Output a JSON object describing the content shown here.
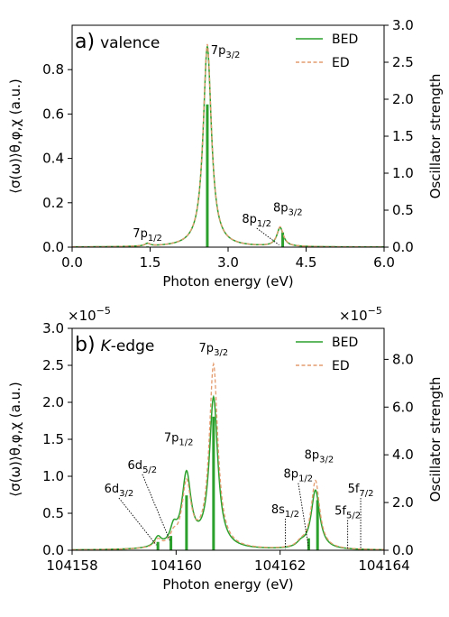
{
  "colors": {
    "bed": "#2ca02c",
    "ed": "#e39b6e",
    "stick": "#2ca02c",
    "axis": "#000000"
  },
  "chart_data": [
    {
      "type": "line",
      "panel_label": "a)",
      "panel_title": "valence",
      "xlabel": "Photon energy (eV)",
      "ylabel": "⟨σ(ω)⟩θ,φ,χ (a.u.)",
      "ylabel_right": "Oscillator strength",
      "xlim": [
        0.0,
        6.0
      ],
      "ylim": [
        0.0,
        1.0
      ],
      "ylim_right": [
        0.0,
        3.0
      ],
      "xticks": [
        0.0,
        1.5,
        3.0,
        4.5,
        6.0
      ],
      "xtick_labels": [
        "0.0",
        "1.5",
        "3.0",
        "4.5",
        "6.0"
      ],
      "yticks": [
        0.0,
        0.2,
        0.4,
        0.6,
        0.8
      ],
      "ytick_labels": [
        "0.0",
        "0.2",
        "0.4",
        "0.6",
        "0.8"
      ],
      "yticks_right": [
        0.0,
        0.5,
        1.0,
        1.5,
        2.0,
        2.5,
        3.0
      ],
      "ytick_labels_right": [
        "0.0",
        "0.5",
        "1.0",
        "1.5",
        "2.0",
        "2.5",
        "3.0"
      ],
      "legend": {
        "placement": "top-right",
        "entries": [
          "BED",
          "ED"
        ]
      },
      "series": [
        {
          "name": "BED",
          "style": "solid",
          "peaks": [
            {
              "x0": 1.45,
              "amp": 0.012,
              "gamma": 0.12
            },
            {
              "x0": 2.6,
              "amp": 0.905,
              "gamma": 0.19
            },
            {
              "x0": 4.0,
              "amp": 0.085,
              "gamma": 0.15
            }
          ]
        },
        {
          "name": "ED",
          "style": "dashed",
          "peaks": [
            {
              "x0": 1.45,
              "amp": 0.012,
              "gamma": 0.12
            },
            {
              "x0": 2.6,
              "amp": 0.915,
              "gamma": 0.19
            },
            {
              "x0": 4.0,
              "amp": 0.088,
              "gamma": 0.15
            }
          ]
        }
      ],
      "sticks": [
        {
          "x": 1.45,
          "f": 0.01
        },
        {
          "x": 2.6,
          "f": 1.93
        },
        {
          "x": 4.05,
          "f": 0.2
        }
      ],
      "annotations": [
        {
          "base": "7p",
          "sub": "1/2",
          "x": 1.45,
          "y": 0.045,
          "anchor": "middle"
        },
        {
          "base": "7p",
          "sub": "3/2",
          "x": 2.95,
          "y": 0.87,
          "anchor": "middle"
        },
        {
          "base": "8p",
          "sub": "1/2",
          "x": 3.55,
          "y": 0.11,
          "anchor": "middle",
          "leader_to": [
            3.98,
            0.01
          ]
        },
        {
          "base": "8p",
          "sub": "3/2",
          "x": 4.15,
          "y": 0.16,
          "anchor": "middle"
        }
      ]
    },
    {
      "type": "line",
      "panel_label": "b)",
      "panel_title_italic": "K",
      "panel_title": "-edge",
      "xlabel": "Photon energy (eV)",
      "ylabel": "⟨σ(ω)⟩θ,φ,χ (a.u.)",
      "ylabel_right": "Oscillator strength",
      "scale_label": "×10",
      "scale_exp": "−5",
      "xlim": [
        104158,
        104164
      ],
      "ylim": [
        0.0,
        3.0
      ],
      "ylim_right": [
        0.0,
        9.3
      ],
      "xticks": [
        104158,
        104160,
        104162,
        104164
      ],
      "xtick_labels": [
        "104158",
        "104160",
        "104162",
        "104164"
      ],
      "yticks": [
        0.0,
        0.5,
        1.0,
        1.5,
        2.0,
        2.5,
        3.0
      ],
      "ytick_labels": [
        "0.0",
        "0.5",
        "1.0",
        "1.5",
        "2.0",
        "2.5",
        "3.0"
      ],
      "yticks_right": [
        0.0,
        2.0,
        4.0,
        6.0,
        8.0
      ],
      "ytick_labels_right": [
        "0.0",
        "2.0",
        "4.0",
        "6.0",
        "8.0"
      ],
      "legend": {
        "placement": "top-right",
        "entries": [
          "BED",
          "ED"
        ]
      },
      "series": [
        {
          "name": "BED",
          "style": "solid",
          "peaks": [
            {
              "x0": 104159.65,
              "amp": 0.13,
              "gamma": 0.16
            },
            {
              "x0": 104159.95,
              "amp": 0.22,
              "gamma": 0.16
            },
            {
              "x0": 104160.2,
              "amp": 0.98,
              "gamma": 0.21
            },
            {
              "x0": 104160.72,
              "amp": 2.03,
              "gamma": 0.2
            },
            {
              "x0": 104162.4,
              "amp": 0.06,
              "gamma": 0.2
            },
            {
              "x0": 104162.68,
              "amp": 0.8,
              "gamma": 0.2
            }
          ]
        },
        {
          "name": "ED",
          "style": "dashed",
          "peaks": [
            {
              "x0": 104159.65,
              "amp": 0.1,
              "gamma": 0.16
            },
            {
              "x0": 104159.95,
              "amp": 0.13,
              "gamma": 0.16
            },
            {
              "x0": 104160.2,
              "amp": 0.86,
              "gamma": 0.21
            },
            {
              "x0": 104160.72,
              "amp": 2.48,
              "gamma": 0.2
            },
            {
              "x0": 104162.4,
              "amp": 0.06,
              "gamma": 0.2
            },
            {
              "x0": 104162.68,
              "amp": 0.93,
              "gamma": 0.2
            }
          ]
        }
      ],
      "sticks": [
        {
          "x": 104159.65,
          "f": 0.35
        },
        {
          "x": 104159.9,
          "f": 0.6
        },
        {
          "x": 104160.2,
          "f": 2.3
        },
        {
          "x": 104160.72,
          "f": 5.6
        },
        {
          "x": 104162.55,
          "f": 0.5
        },
        {
          "x": 104162.72,
          "f": 2.1
        }
      ],
      "annotations": [
        {
          "base": "6d",
          "sub": "3/2",
          "x": 104158.9,
          "y": 0.78,
          "anchor": "middle",
          "leader_to": [
            104159.62,
            0.07
          ]
        },
        {
          "base": "6d",
          "sub": "5/2",
          "x": 104159.35,
          "y": 1.1,
          "anchor": "middle",
          "leader_to": [
            104159.88,
            0.13
          ]
        },
        {
          "base": "7p",
          "sub": "1/2",
          "x": 104160.05,
          "y": 1.47,
          "anchor": "middle"
        },
        {
          "base": "7p",
          "sub": "3/2",
          "x": 104160.72,
          "y": 2.68,
          "anchor": "middle"
        },
        {
          "base": "8s",
          "sub": "1/2",
          "x": 104162.1,
          "y": 0.5,
          "anchor": "middle",
          "leader_to": [
            104162.1,
            0.02
          ]
        },
        {
          "base": "8p",
          "sub": "1/2",
          "x": 104162.35,
          "y": 0.98,
          "anchor": "middle",
          "leader_to": [
            104162.55,
            0.03
          ]
        },
        {
          "base": "8p",
          "sub": "3/2",
          "x": 104162.75,
          "y": 1.24,
          "anchor": "middle"
        },
        {
          "base": "5f",
          "sub": "5/2",
          "x": 104163.3,
          "y": 0.48,
          "anchor": "middle",
          "leader_to": [
            104163.3,
            0.02
          ]
        },
        {
          "base": "5f",
          "sub": "7/2",
          "x": 104163.55,
          "y": 0.78,
          "anchor": "middle",
          "leader_to": [
            104163.55,
            0.02
          ]
        }
      ]
    }
  ]
}
